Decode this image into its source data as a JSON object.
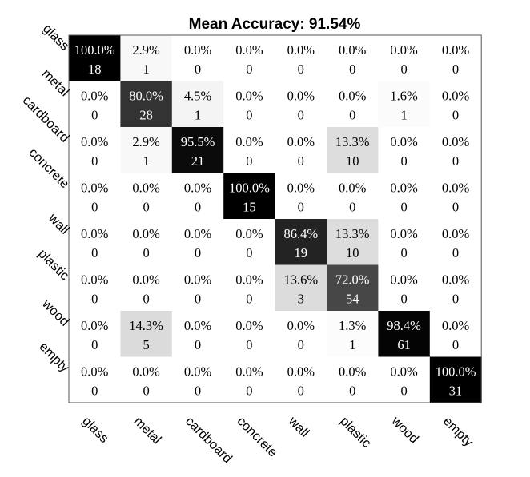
{
  "chart_data": {
    "type": "heatmap",
    "title": "Mean Accuracy: 91.54%",
    "row_labels": [
      "glass",
      "metal",
      "cardboard",
      "concrete",
      "wall",
      "plastic",
      "wood",
      "empty"
    ],
    "col_labels": [
      "glass",
      "metal",
      "cardboard",
      "concrete",
      "wall",
      "plastic",
      "wood",
      "empty"
    ],
    "percent": [
      [
        "100.0%",
        "2.9%",
        "0.0%",
        "0.0%",
        "0.0%",
        "0.0%",
        "0.0%",
        "0.0%"
      ],
      [
        "0.0%",
        "80.0%",
        "4.5%",
        "0.0%",
        "0.0%",
        "0.0%",
        "1.6%",
        "0.0%"
      ],
      [
        "0.0%",
        "2.9%",
        "95.5%",
        "0.0%",
        "0.0%",
        "13.3%",
        "0.0%",
        "0.0%"
      ],
      [
        "0.0%",
        "0.0%",
        "0.0%",
        "100.0%",
        "0.0%",
        "0.0%",
        "0.0%",
        "0.0%"
      ],
      [
        "0.0%",
        "0.0%",
        "0.0%",
        "0.0%",
        "86.4%",
        "13.3%",
        "0.0%",
        "0.0%"
      ],
      [
        "0.0%",
        "0.0%",
        "0.0%",
        "0.0%",
        "13.6%",
        "72.0%",
        "0.0%",
        "0.0%"
      ],
      [
        "0.0%",
        "14.3%",
        "0.0%",
        "0.0%",
        "0.0%",
        "1.3%",
        "98.4%",
        "0.0%"
      ],
      [
        "0.0%",
        "0.0%",
        "0.0%",
        "0.0%",
        "0.0%",
        "0.0%",
        "0.0%",
        "100.0%"
      ]
    ],
    "counts": [
      [
        18,
        1,
        0,
        0,
        0,
        0,
        0,
        0
      ],
      [
        0,
        28,
        1,
        0,
        0,
        0,
        1,
        0
      ],
      [
        0,
        1,
        21,
        0,
        0,
        10,
        0,
        0
      ],
      [
        0,
        0,
        0,
        15,
        0,
        0,
        0,
        0
      ],
      [
        0,
        0,
        0,
        0,
        19,
        10,
        0,
        0
      ],
      [
        0,
        0,
        0,
        0,
        3,
        54,
        0,
        0
      ],
      [
        0,
        5,
        0,
        0,
        0,
        1,
        61,
        0
      ],
      [
        0,
        0,
        0,
        0,
        0,
        0,
        0,
        31
      ]
    ],
    "colormap": "white-to-black",
    "grid": false,
    "legend": "none"
  }
}
